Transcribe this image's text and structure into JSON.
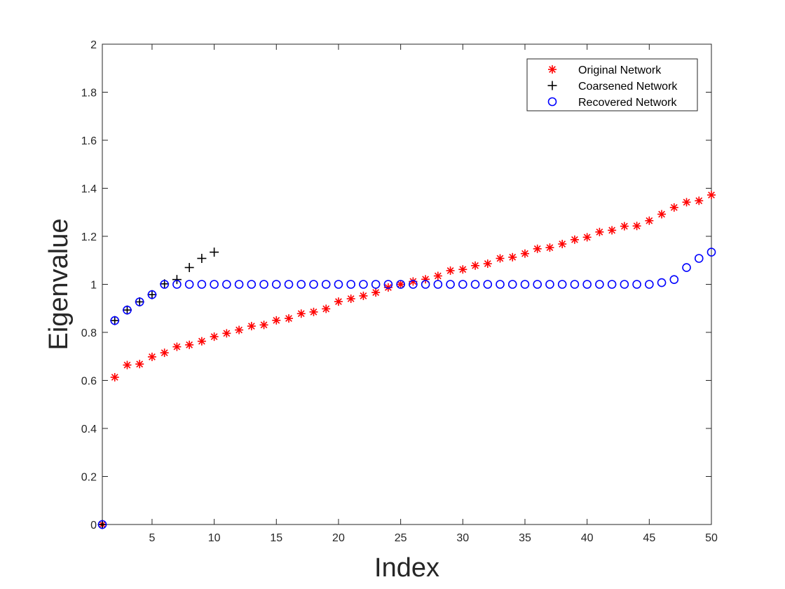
{
  "chart_data": {
    "type": "scatter",
    "xlabel": "Index",
    "ylabel": "Eigenvalue",
    "xlim": [
      1,
      50
    ],
    "ylim": [
      0,
      2
    ],
    "xticks": [
      5,
      10,
      15,
      20,
      25,
      30,
      35,
      40,
      45,
      50
    ],
    "yticks": [
      0,
      0.2,
      0.4,
      0.6,
      0.8,
      1,
      1.2,
      1.4,
      1.6,
      1.8,
      2
    ],
    "ytick_labels": [
      "0",
      "0.2",
      "0.4",
      "0.6",
      "0.8",
      "1",
      "1.2",
      "1.4",
      "1.6",
      "1.8",
      "2"
    ],
    "grid": false,
    "legend_position": "top-right",
    "series": [
      {
        "name": "Original Network",
        "marker": "asterisk",
        "color": "#ff0000",
        "x": [
          1,
          2,
          3,
          4,
          5,
          6,
          7,
          8,
          9,
          10,
          11,
          12,
          13,
          14,
          15,
          16,
          17,
          18,
          19,
          20,
          21,
          22,
          23,
          24,
          25,
          26,
          27,
          28,
          29,
          30,
          31,
          32,
          33,
          34,
          35,
          36,
          37,
          38,
          39,
          40,
          41,
          42,
          43,
          44,
          45,
          46,
          47,
          48,
          49,
          50
        ],
        "values": [
          0,
          0.613,
          0.664,
          0.668,
          0.698,
          0.715,
          0.74,
          0.748,
          0.763,
          0.782,
          0.796,
          0.81,
          0.826,
          0.831,
          0.85,
          0.858,
          0.878,
          0.885,
          0.898,
          0.928,
          0.94,
          0.952,
          0.966,
          0.987,
          1.0,
          1.012,
          1.021,
          1.035,
          1.057,
          1.062,
          1.078,
          1.086,
          1.108,
          1.113,
          1.128,
          1.148,
          1.153,
          1.168,
          1.186,
          1.196,
          1.218,
          1.225,
          1.242,
          1.243,
          1.265,
          1.292,
          1.32,
          1.342,
          1.348,
          1.372
        ]
      },
      {
        "name": "Coarsened Network",
        "marker": "plus",
        "color": "#000000",
        "x": [
          1,
          2,
          3,
          4,
          5,
          6,
          7,
          8,
          9,
          10
        ],
        "values": [
          0,
          0.849,
          0.893,
          0.927,
          0.957,
          1.002,
          1.02,
          1.07,
          1.108,
          1.134
        ]
      },
      {
        "name": "Recovered Network",
        "marker": "circle",
        "color": "#0000ff",
        "x": [
          1,
          2,
          3,
          4,
          5,
          6,
          7,
          8,
          9,
          10,
          11,
          12,
          13,
          14,
          15,
          16,
          17,
          18,
          19,
          20,
          21,
          22,
          23,
          24,
          25,
          26,
          27,
          28,
          29,
          30,
          31,
          32,
          33,
          34,
          35,
          36,
          37,
          38,
          39,
          40,
          41,
          42,
          43,
          44,
          45,
          46,
          47,
          48,
          49,
          50
        ],
        "values": [
          0,
          0.849,
          0.893,
          0.927,
          0.957,
          1.0,
          1.0,
          1.0,
          1.0,
          1.0,
          1.0,
          1.0,
          1.0,
          1.0,
          1.0,
          1.0,
          1.0,
          1.0,
          1.0,
          1.0,
          1.0,
          1.0,
          1.0,
          1.0,
          1.0,
          1.0,
          1.0,
          1.0,
          1.0,
          1.0,
          1.0,
          1.0,
          1.0,
          1.0,
          1.0,
          1.0,
          1.0,
          1.0,
          1.0,
          1.0,
          1.0,
          1.0,
          1.0,
          1.0,
          1.0,
          1.007,
          1.02,
          1.07,
          1.108,
          1.134
        ]
      }
    ]
  }
}
